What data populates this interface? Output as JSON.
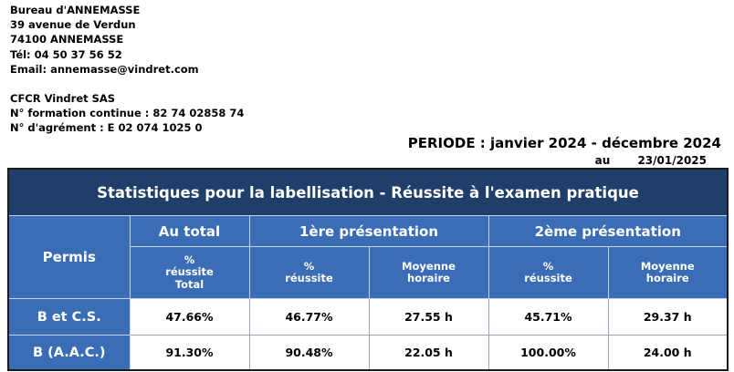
{
  "address": {
    "line1": "Bureau d'ANNEMASSE",
    "line2": "39 avenue de Verdun",
    "line3": "74100 ANNEMASSE",
    "phone": "Tél: 04 50 37 56 52",
    "email": "Email: annemasse@vindret.com"
  },
  "company": {
    "name": "CFCR Vindret SAS",
    "formation": "N° formation continue : 82 74 02858 74",
    "agrement": "N° d'agrément : E 02 074 1025 0"
  },
  "periode": "PERIODE : janvier 2024 - décembre 2024",
  "date_label": "au",
  "date_value": "23/01/2025",
  "table": {
    "title": "Statistiques pour la labellisation   -   Réussite à l'examen pratique",
    "permis_header": "Permis",
    "groups": {
      "total": "Au total",
      "first": "1ère présentation",
      "second": "2ème présentation"
    },
    "sub": {
      "total_l1": "%",
      "total_l2": "réussite",
      "total_l3": "Total",
      "first_pct_l1": "%",
      "first_pct_l2": "réussite",
      "first_moy_l1": "Moyenne",
      "first_moy_l2": "horaire",
      "second_pct_l1": "%",
      "second_pct_l2": "réussite",
      "second_moy_l1": "Moyenne",
      "second_moy_l2": "horaire"
    },
    "rows": [
      {
        "label": "B  et  C.S.",
        "total": "47.66%",
        "first_pct": "46.77%",
        "first_moy": "27.55 h",
        "second_pct": "45.71%",
        "second_moy": "29.37 h"
      },
      {
        "label": "B  (A.A.C.)",
        "total": "91.30%",
        "first_pct": "90.48%",
        "first_moy": "22.05 h",
        "second_pct": "100.00%",
        "second_moy": "24.00 h"
      }
    ]
  }
}
